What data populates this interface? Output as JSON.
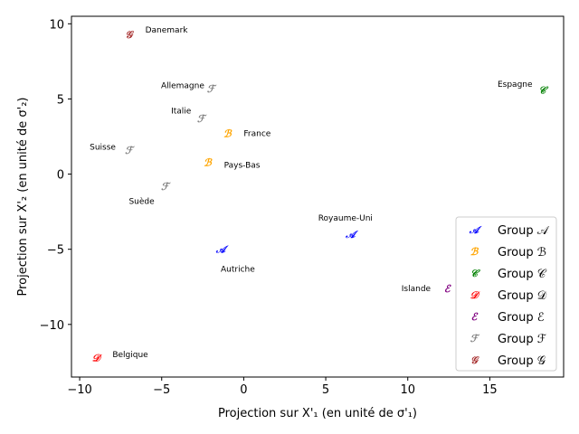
{
  "chart_data": {
    "type": "scatter",
    "xlabel": "Projection sur X'₁ (en unité de σ'₁)",
    "ylabel": "Projection sur X'₂ (en unité de σ'₂)",
    "xlim": [
      -10.5,
      19.5
    ],
    "ylim": [
      -13.5,
      10.5
    ],
    "xticks": [
      -10,
      -5,
      0,
      5,
      10,
      15
    ],
    "yticks": [
      10,
      5,
      0,
      -5,
      -10
    ],
    "grid": false,
    "legend_position": "lower-right",
    "groups": [
      {
        "name": "Group 𝒜",
        "glyph": "𝒜",
        "color": "#0000ff"
      },
      {
        "name": "Group ℬ",
        "glyph": "ℬ",
        "color": "#ffa500"
      },
      {
        "name": "Group 𝒞",
        "glyph": "𝒞",
        "color": "#008000"
      },
      {
        "name": "Group 𝒟",
        "glyph": "𝒟",
        "color": "#ff0000"
      },
      {
        "name": "Group ℰ",
        "glyph": "ℰ",
        "color": "#800080"
      },
      {
        "name": "Group ℱ",
        "glyph": "ℱ",
        "color": "#808080"
      },
      {
        "name": "Group 𝒢",
        "glyph": "𝒢",
        "color": "#a52a2a"
      }
    ],
    "points": [
      {
        "label": "Danemark",
        "group": 6,
        "x": -7.0,
        "y": 9.3,
        "label_x": -6.0,
        "label_y": 9.6,
        "anchor": "start"
      },
      {
        "label": "Allemagne",
        "group": 5,
        "x": -2.0,
        "y": 5.7,
        "label_x": -2.4,
        "label_y": 5.9,
        "anchor": "end"
      },
      {
        "label": "Italie",
        "group": 5,
        "x": -2.6,
        "y": 3.7,
        "label_x": -3.2,
        "label_y": 4.2,
        "anchor": "end"
      },
      {
        "label": "Suisse",
        "group": 5,
        "x": -7.0,
        "y": 1.6,
        "label_x": -7.8,
        "label_y": 1.8,
        "anchor": "end"
      },
      {
        "label": "Suède",
        "group": 5,
        "x": -4.8,
        "y": -0.8,
        "label_x": -7.0,
        "label_y": -1.8,
        "anchor": "start"
      },
      {
        "label": "France",
        "group": 1,
        "x": -1.0,
        "y": 2.7,
        "label_x": 0.0,
        "label_y": 2.7,
        "anchor": "start"
      },
      {
        "label": "Pays-Bas",
        "group": 1,
        "x": -2.2,
        "y": 0.8,
        "label_x": -1.2,
        "label_y": 0.6,
        "anchor": "start"
      },
      {
        "label": "Espagne",
        "group": 2,
        "x": 18.2,
        "y": 5.6,
        "label_x": 17.6,
        "label_y": 6.0,
        "anchor": "end"
      },
      {
        "label": "Royaume-Uni",
        "group": 0,
        "x": 6.5,
        "y": -4.0,
        "label_x": 6.2,
        "label_y": -2.9,
        "anchor": "middle"
      },
      {
        "label": "Autriche",
        "group": 0,
        "x": -1.4,
        "y": -5.0,
        "label_x": -1.4,
        "label_y": -6.3,
        "anchor": "start"
      },
      {
        "label": "Islande",
        "group": 4,
        "x": 12.4,
        "y": -7.6,
        "label_x": 11.4,
        "label_y": -7.6,
        "anchor": "end"
      },
      {
        "label": "Belgique",
        "group": 3,
        "x": -9.0,
        "y": -12.2,
        "label_x": -8.0,
        "label_y": -12.0,
        "anchor": "start"
      }
    ]
  }
}
